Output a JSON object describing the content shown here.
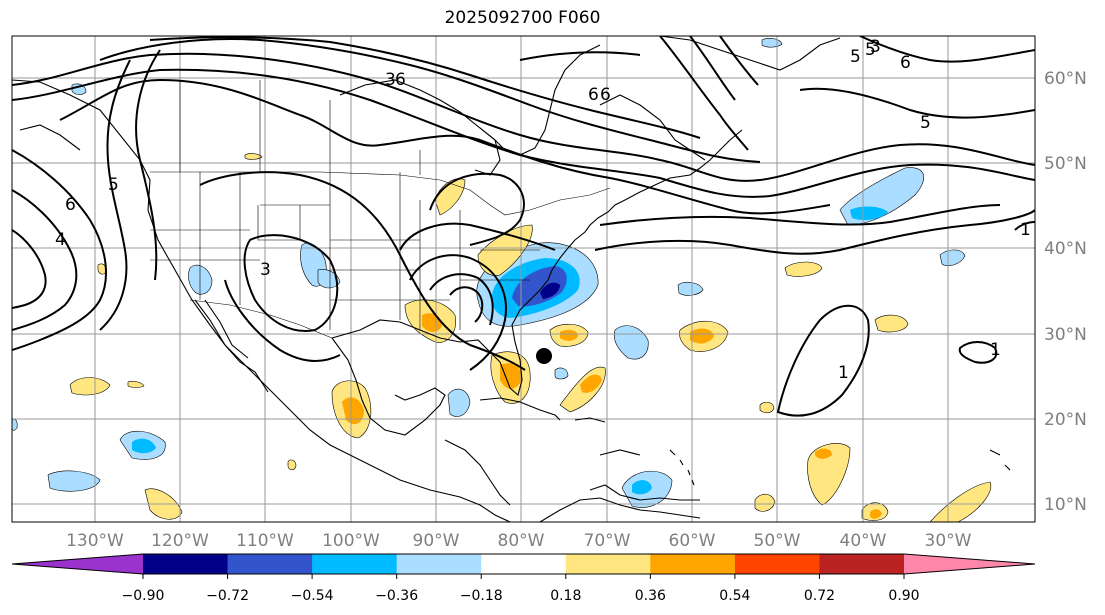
{
  "title": "2025092700 F060",
  "map": {
    "lon_ticks": [
      "130°W",
      "120°W",
      "110°W",
      "100°W",
      "90°W",
      "80°W",
      "70°W",
      "60°W",
      "50°W",
      "40°W",
      "30°W"
    ],
    "lat_ticks": [
      "60°N",
      "50°N",
      "40°N",
      "30°N",
      "20°N",
      "10°N"
    ],
    "contour_labels": [
      "3",
      "6",
      "6",
      "5",
      "3",
      "3",
      "5",
      "6",
      "6",
      "4",
      "5",
      "6",
      "1",
      "1",
      "1",
      "5"
    ],
    "colors": {
      "coast": "#000000",
      "grid": "#999999",
      "contour": "#000000"
    }
  },
  "colorbar": {
    "ticks": [
      "−0.90",
      "−0.72",
      "−0.54",
      "−0.36",
      "−0.18",
      "0.18",
      "0.36",
      "0.54",
      "0.72",
      "0.90"
    ],
    "colors": [
      "#9933cc",
      "#000088",
      "#3355cc",
      "#00bbff",
      "#aaddff",
      "#ffffff",
      "#ffe680",
      "#ffa500",
      "#ff4400",
      "#bb2222",
      "#ff88aa"
    ]
  }
}
